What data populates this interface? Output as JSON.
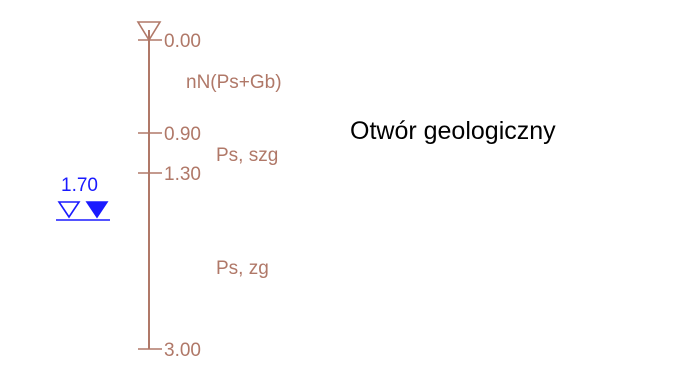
{
  "title": "Otwór geologiczny",
  "depth_marks": [
    {
      "label": "0.00",
      "depth": 0.0
    },
    {
      "label": "0.90",
      "depth": 0.9
    },
    {
      "label": "1.30",
      "depth": 1.3
    },
    {
      "label": "3.00",
      "depth": 3.0
    }
  ],
  "layers": [
    {
      "name": "nN(Ps+Gb)",
      "top": 0.0,
      "bottom": 0.9
    },
    {
      "name": "Ps, szg",
      "top": 0.9,
      "bottom": 1.3
    },
    {
      "name": "Ps, zg",
      "top": 1.3,
      "bottom": 3.0
    }
  ],
  "groundwater": {
    "label": "1.70",
    "depth": 1.7
  },
  "colors": {
    "log_line": "#b07868",
    "groundwater": "#1a1aff",
    "title": "#000000"
  }
}
